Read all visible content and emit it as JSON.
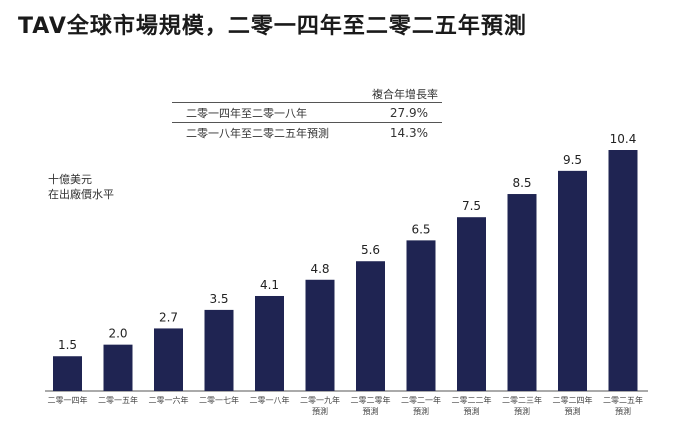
{
  "title": "TAV全球市場規模，二零一四年至二零二五年預測",
  "cagr_table": {
    "header": "複合年增長率",
    "rows": [
      {
        "period": "二零一四年至二零一八年",
        "value": "27.9%"
      },
      {
        "period": "二零一八年至二零二五年預測",
        "value": "14.3%"
      }
    ]
  },
  "chart_data": {
    "type": "bar",
    "title": "TAV全球市場規模，二零一四年至二零二五年預測",
    "ylabel": "十億美元\n在出廠價水平",
    "xlabel": "",
    "ylim": [
      0,
      11
    ],
    "grid": false,
    "bar_color": "#1f2452",
    "categories": [
      [
        "二零一四年"
      ],
      [
        "二零一五年"
      ],
      [
        "二零一六年"
      ],
      [
        "二零一七年"
      ],
      [
        "二零一八年"
      ],
      [
        "二零一九年",
        "預測"
      ],
      [
        "二零二零年",
        "預測"
      ],
      [
        "二零二一年",
        "預測"
      ],
      [
        "二零二二年",
        "預測"
      ],
      [
        "二零二三年",
        "預測"
      ],
      [
        "二零二四年",
        "預測"
      ],
      [
        "二零二五年",
        "預測"
      ]
    ],
    "values": [
      1.5,
      2.0,
      2.7,
      3.5,
      4.1,
      4.8,
      5.6,
      6.5,
      7.5,
      8.5,
      9.5,
      10.4
    ],
    "value_labels": [
      "1.5",
      "2.0",
      "2.7",
      "3.5",
      "4.1",
      "4.8",
      "5.6",
      "6.5",
      "7.5",
      "8.5",
      "9.5",
      "10.4"
    ]
  }
}
